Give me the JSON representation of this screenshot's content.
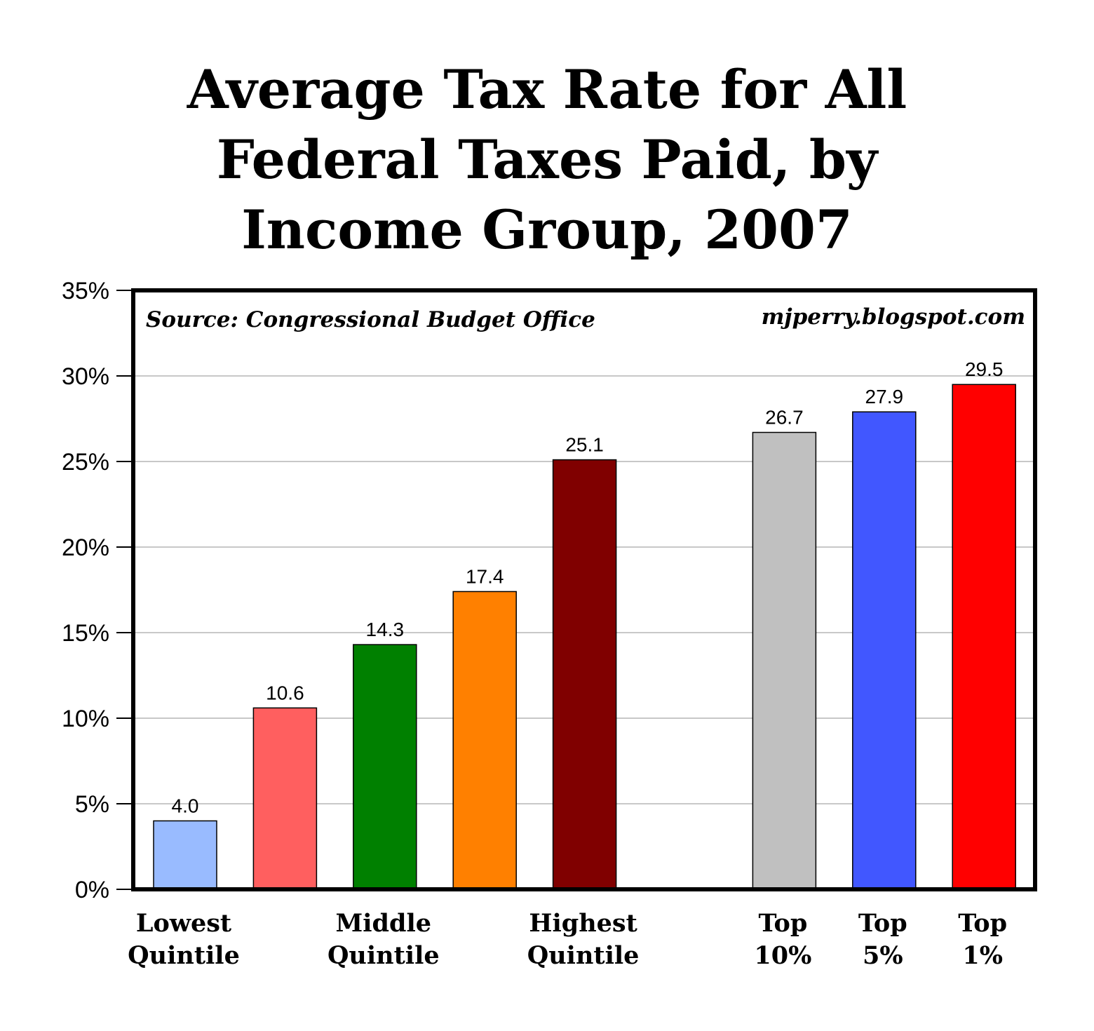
{
  "title_lines": [
    "Average Tax Rate for All",
    "Federal Taxes Paid, by",
    "Income Group, 2007"
  ],
  "source_note": "Source: Congressional Budget Office",
  "watermark": "mjperry.blogspot.com",
  "chart_data": {
    "type": "bar",
    "title": "Average Tax Rate for All Federal Taxes Paid, by Income Group, 2007",
    "xlabel": "",
    "ylabel": "",
    "ylim": [
      0,
      35
    ],
    "yticks": [
      "0%",
      "5%",
      "10%",
      "15%",
      "20%",
      "25%",
      "30%",
      "35%"
    ],
    "grid": true,
    "categories": [
      [
        "Lowest",
        "Quintile"
      ],
      [],
      [
        "Middle",
        "Quintile"
      ],
      [],
      [
        "Highest",
        "Quintile"
      ],
      [
        "Top",
        "10%"
      ],
      [
        "Top",
        "5%"
      ],
      [
        "Top",
        "1%"
      ]
    ],
    "values": [
      4.0,
      10.6,
      14.3,
      17.4,
      25.1,
      26.7,
      27.9,
      29.5
    ],
    "value_labels": [
      "4.0",
      "10.6",
      "14.3",
      "17.4",
      "25.1",
      "26.7",
      "27.9",
      "29.5"
    ],
    "colors": [
      "#99BBFF",
      "#FF5F5F",
      "#008000",
      "#FF8000",
      "#800000",
      "#C0C0C0",
      "#4157FF",
      "#FF0000"
    ]
  }
}
